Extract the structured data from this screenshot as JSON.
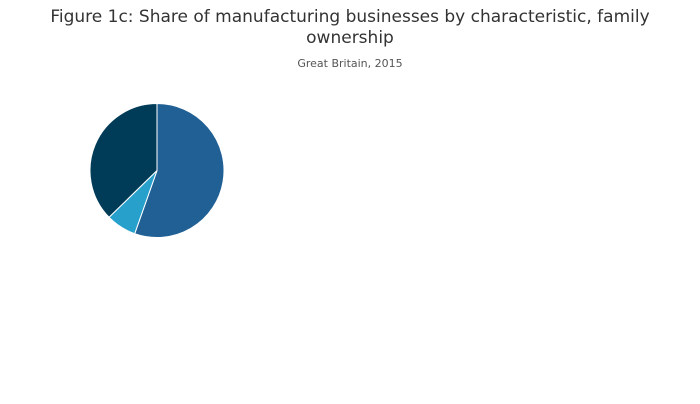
{
  "chart_data": {
    "type": "pie",
    "title_lines": [
      "Figure 1c: Share of manufacturing businesses by characteristic, family",
      "ownership"
    ],
    "subtitle": "Great Britain, 2015",
    "slices": [
      {
        "value": 55.4,
        "color": "#206095"
      },
      {
        "value": 7.3,
        "color": "#27a0cc"
      },
      {
        "value": 37.3,
        "color": "#003c57"
      }
    ],
    "start_angle_deg": 0,
    "direction": "clockwise",
    "slice_border_color": "#ffffff",
    "legend": "none"
  }
}
